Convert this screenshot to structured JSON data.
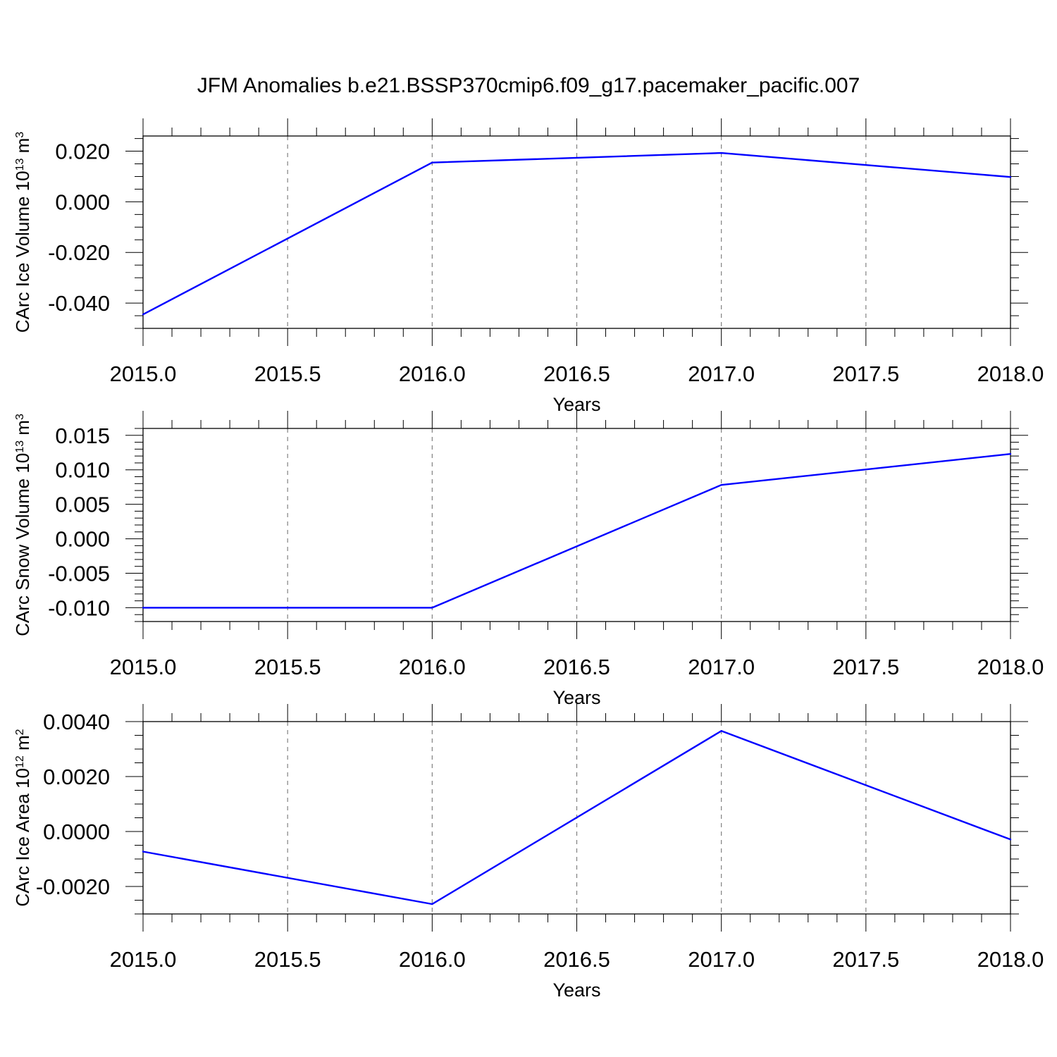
{
  "title": "JFM Anomalies b.e21.BSSP370cmip6.f09_g17.pacemaker_pacific.007",
  "colors": {
    "line": "#0000ff",
    "axis": "#000000",
    "grid": "#808080"
  },
  "chart_data": [
    {
      "type": "line",
      "ylabel": {
        "prefix": "CArc Ice Volume 10",
        "exp": "13",
        "unit": " m",
        "unit_exp": "3"
      },
      "xlabel": "Years",
      "x": [
        2015,
        2016,
        2017,
        2018
      ],
      "series": [
        {
          "values": [
            -0.0445,
            0.0155,
            0.0193,
            0.0098
          ]
        }
      ],
      "xlim": [
        2015,
        2018
      ],
      "ylim": [
        -0.05,
        0.026
      ],
      "xticks": [
        2015.0,
        2015.5,
        2016.0,
        2016.5,
        2017.0,
        2017.5,
        2018.0
      ],
      "xticklabels": [
        "2015.0",
        "2015.5",
        "2016.0",
        "2016.5",
        "2017.0",
        "2017.5",
        "2018.0"
      ],
      "yticks": [
        -0.04,
        -0.02,
        0.0,
        0.02
      ],
      "yticklabels": [
        "-0.040",
        "-0.020",
        "0.000",
        "0.020"
      ],
      "yminor_step": 0.005,
      "grid": "vertical-dashed"
    },
    {
      "type": "line",
      "ylabel": {
        "prefix": "CArc Snow Volume 10",
        "exp": "13",
        "unit": " m",
        "unit_exp": "3"
      },
      "xlabel": "Years",
      "x": [
        2015,
        2016,
        2017,
        2018
      ],
      "series": [
        {
          "values": [
            -0.01,
            -0.01,
            0.0078,
            0.0123
          ]
        }
      ],
      "xlim": [
        2015,
        2018
      ],
      "ylim": [
        -0.012,
        0.016
      ],
      "xticks": [
        2015.0,
        2015.5,
        2016.0,
        2016.5,
        2017.0,
        2017.5,
        2018.0
      ],
      "xticklabels": [
        "2015.0",
        "2015.5",
        "2016.0",
        "2016.5",
        "2017.0",
        "2017.5",
        "2018.0"
      ],
      "yticks": [
        -0.01,
        -0.005,
        0.0,
        0.005,
        0.01,
        0.015
      ],
      "yticklabels": [
        "-0.010",
        "-0.005",
        "0.000",
        "0.005",
        "0.010",
        "0.015"
      ],
      "yminor_step": 0.001,
      "grid": "vertical-dashed"
    },
    {
      "type": "line",
      "ylabel": {
        "prefix": "CArc Ice Area 10",
        "exp": "12",
        "unit": " m",
        "unit_exp": "2"
      },
      "xlabel": "Years",
      "x": [
        2015,
        2016,
        2017,
        2018
      ],
      "series": [
        {
          "values": [
            -0.00073,
            -0.00264,
            0.00366,
            -0.00029
          ]
        }
      ],
      "xlim": [
        2015,
        2018
      ],
      "ylim": [
        -0.003,
        0.004
      ],
      "xticks": [
        2015.0,
        2015.5,
        2016.0,
        2016.5,
        2017.0,
        2017.5,
        2018.0
      ],
      "xticklabels": [
        "2015.0",
        "2015.5",
        "2016.0",
        "2016.5",
        "2017.0",
        "2017.5",
        "2018.0"
      ],
      "yticks": [
        -0.002,
        0.0,
        0.002,
        0.004
      ],
      "yticklabels": [
        "-0.0020",
        "0.0000",
        "0.0020",
        "0.0040"
      ],
      "yminor_step": 0.0005,
      "grid": "vertical-dashed"
    }
  ]
}
